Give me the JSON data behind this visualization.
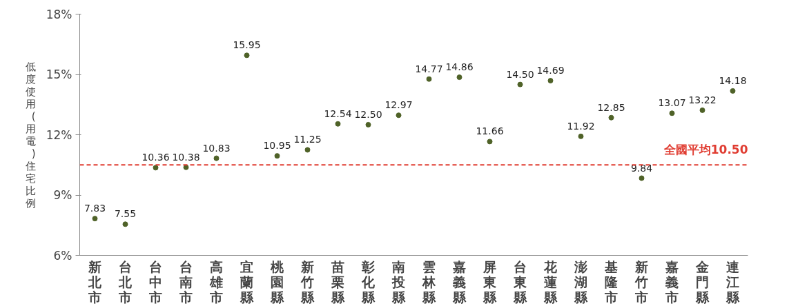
{
  "chart_data": {
    "type": "scatter",
    "ylabel": "低度使用(用電)住宅比例",
    "categories": [
      "新北市",
      "台北市",
      "台中市",
      "台南市",
      "高雄市",
      "宜蘭縣",
      "桃園縣",
      "新竹縣",
      "苗栗縣",
      "彰化縣",
      "南投縣",
      "雲林縣",
      "嘉義縣",
      "屏東縣",
      "台東縣",
      "花蓮縣",
      "澎湖縣",
      "基隆市",
      "新竹市",
      "嘉義市",
      "金門縣",
      "連江縣"
    ],
    "series": [
      {
        "color": "#4f6228",
        "values": [
          7.83,
          7.55,
          10.36,
          10.38,
          10.83,
          15.95,
          10.95,
          11.25,
          12.54,
          12.5,
          12.97,
          14.77,
          14.86,
          11.66,
          14.5,
          14.69,
          11.92,
          12.85,
          9.84,
          13.07,
          13.22,
          14.18
        ]
      }
    ],
    "ylim": [
      6,
      18
    ],
    "yticks": [
      {
        "value": 6,
        "label": "6%"
      },
      {
        "value": 9,
        "label": "9%"
      },
      {
        "value": 12,
        "label": "12%"
      },
      {
        "value": 15,
        "label": "15%"
      },
      {
        "value": 18,
        "label": "18%"
      }
    ],
    "ref_lines": [
      {
        "axis": "y",
        "value": 10.5,
        "label": "全國平均10.50",
        "color": "#e03c31",
        "line_style": "dashed"
      }
    ],
    "value_labels": [
      "7.83",
      "7.55",
      "10.36",
      "10.38",
      "10.83",
      "15.95",
      "10.95",
      "11.25",
      "12.54",
      "12.50",
      "12.97",
      "14.77",
      "14.86",
      "11.66",
      "14.50",
      "14.69",
      "11.92",
      "12.85",
      "9.84",
      "13.07",
      "13.22",
      "14.18"
    ],
    "grid": false,
    "marker": "circle"
  }
}
